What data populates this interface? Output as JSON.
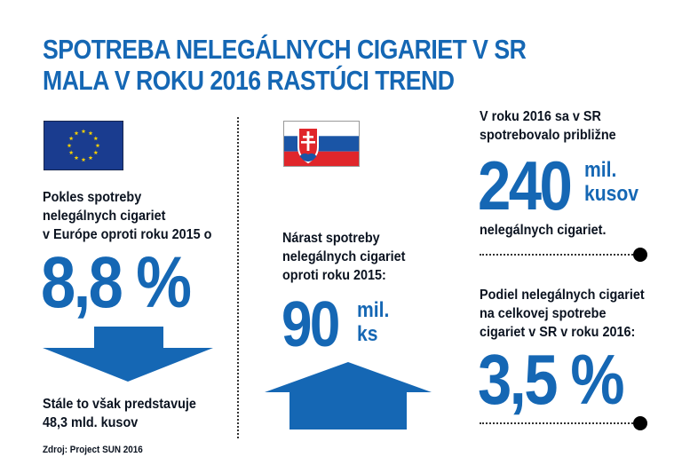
{
  "title": {
    "line1": "SPOTREBA NELEGÁLNYCH CIGARIET V SR",
    "line2": "MALA V ROKU 2016 RASTÚCI TREND"
  },
  "left": {
    "flag_icon": "eu-flag-icon",
    "text_lines": [
      "Pokles spotreby",
      "nelegálnych cigariet",
      "v Európe oproti roku 2015 o"
    ],
    "big_value": "8,8 %",
    "arrow_icon": "down-arrow-icon",
    "bottom_lines": [
      "Stále to však predstavuje",
      "48,3 mld. kusov"
    ]
  },
  "middle": {
    "flag_icon": "slovak-flag-icon",
    "text_lines": [
      "Nárast spotreby",
      "nelegálnych cigariet",
      "oproti roku 2015:"
    ],
    "big_value": "90",
    "unit_lines": [
      "mil.",
      "ks"
    ],
    "arrow_icon": "up-arrow-icon"
  },
  "right": {
    "top_lines": [
      "V roku 2016 sa v SR",
      "spotrebovalo približne"
    ],
    "big_value": "240",
    "unit_lines": [
      "mil.",
      "kusov"
    ],
    "after_line": "nelegálnych cigariet.",
    "share_lines": [
      "Podiel nelegálnych cigariet",
      "na celkovej spotrebe",
      "cigariet v SR v roku 2016:"
    ],
    "share_value": "3,5 %"
  },
  "source": "Zdroj: Project SUN 2016",
  "colors": {
    "accent": "#1567b4",
    "eu_blue": "#1a3c8f",
    "eu_star": "#f5d000",
    "sk_white": "#ffffff",
    "sk_blue": "#1a55a6",
    "sk_red": "#e0262b"
  }
}
